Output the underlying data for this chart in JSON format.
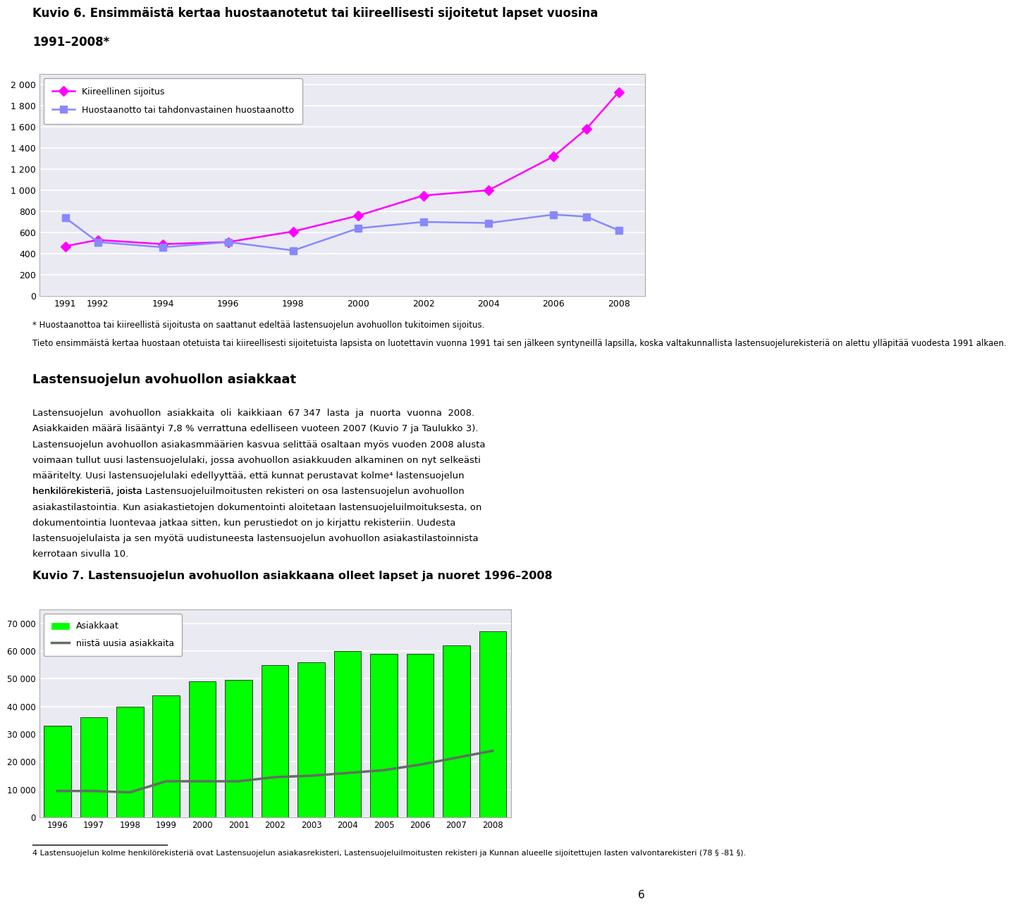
{
  "title1_line1": "Kuvio 6. Ensimmäistä kertaa huostaanotetut tai kiireellisesti sijoitetut lapset vuosina",
  "title1_line2": "1991–2008*",
  "chart1_years": [
    1991,
    1992,
    1994,
    1996,
    1998,
    2000,
    2002,
    2004,
    2006,
    2007,
    2008
  ],
  "kiireellinen": [
    470,
    530,
    490,
    510,
    610,
    760,
    950,
    1000,
    1320,
    1580,
    1930
  ],
  "huostaanotto": [
    740,
    510,
    460,
    510,
    430,
    640,
    700,
    690,
    770,
    750,
    620
  ],
  "kiireellinen_color": "#FF00FF",
  "huostaanotto_color": "#8888FF",
  "legend1_label1": "Kiireellinen sijoitus",
  "legend1_label2": "Huostaanotto tai tahdonvastainen huostaanotto",
  "chart1_yticks": [
    0,
    200,
    400,
    600,
    800,
    1000,
    1200,
    1400,
    1600,
    1800,
    2000
  ],
  "chart1_xticks": [
    1991,
    1992,
    1994,
    1996,
    1998,
    2000,
    2002,
    2004,
    2006,
    2008
  ],
  "footnote1": "* Huostaanottoa tai kiireellistä sijoitusta on saattanut edeltää lastensuojelun avohuollon tukitoimen sijoitus.",
  "footnote2": "Tieto ensimmäistä kertaa huostaan otetuista tai kiireellisesti sijoitetuista lapsista on luotettavin vuonna 1991 tai sen jälkeen syntyneillä lapsilla, koska valtakunnallista lastensuojelurekisteriä on alettu ylläpitää vuodesta 1991 alkaen.",
  "section_heading": "Lastensuojelun avohuollon asiakkaat",
  "para_line1": "Lastensuojelun  avohuollon  asiakkaita  oli  kaikkiaan  67 347  lasta  ja  nuorta  vuonna  2008.",
  "para_line2": "Asiakkaiden määrä lisääntyi 7,8 % verrattuna edelliseen vuoteen 2007 (Kuvio 7 ja Taulukko 3).",
  "para_line3": "Lastensuojelun avohuollon asiakasmmäärien kasvua selittää osaltaan myös vuoden 2008 alusta",
  "para_line4": "voimaan tullut uusi lastensuojelulaki, jossa avohuollon asiakkuuden alkaminen on nyt selkeästi",
  "para_line5": "määritelty. Uusi lastensuojelulaki edellyyttää, että kunnat perustavat kolme⁴ lastensuojelun",
  "para_line6": "henkilörekisteriä, joista Lastensuojeluilmoitusten rekisteri on osa lastensuojelun avohuollon",
  "para_line7": "asiakastilastointia. Kun asiakastietojen dokumentointi aloitetaan lastensuojeluilmoituksesta, on",
  "para_line8": "dokumentointia luontevaa jatkaa sitten, kun perustiedot on jo kirjattu rekisteriin. Uudesta",
  "para_line9": "lastensuojelulaista ja sen myötä uudistuneesta lastensuojelun avohuollon asiakastilastoinnista",
  "para_line10": "kerrotaan sivulla 10.",
  "title2": "Kuvio 7. Lastensuojelun avohuollon asiakkaana olleet lapset ja nuoret 1996–2008",
  "chart2_years": [
    1996,
    1997,
    1998,
    1999,
    2000,
    2001,
    2002,
    2003,
    2004,
    2005,
    2006,
    2007,
    2008
  ],
  "asiakkaat": [
    33000,
    36000,
    40000,
    44000,
    49000,
    49500,
    55000,
    56000,
    60000,
    59000,
    59000,
    62000,
    67000
  ],
  "uusia": [
    9500,
    9500,
    9000,
    13000,
    13000,
    13000,
    14500,
    15000,
    16000,
    17000,
    19000,
    21500,
    24000
  ],
  "bar_color": "#00FF00",
  "bar_edge_color": "#000000",
  "line2_color": "#607060",
  "legend2_label1": "Asiakkaat",
  "legend2_label2": "niistä uusia asiakkaita",
  "chart2_yticks": [
    0,
    10000,
    20000,
    30000,
    40000,
    50000,
    60000,
    70000
  ],
  "footnote4_super": "4",
  "footnote4": " Lastensuojelun kolme henkilörekisteriä ovat Lastensuojelun asiakasrekisteri, Lastensuojeluilmoitusten rekisteri ja Kunnan alueelle sijoitettujen lasten valvontarekisteri (78 § -81 §).",
  "page_number": "6",
  "background_color": "#FFFFFF",
  "chart_bg_color": "#EAEAF2",
  "grid_color": "#FFFFFF",
  "chart1_border_color": "#AAAAAA"
}
